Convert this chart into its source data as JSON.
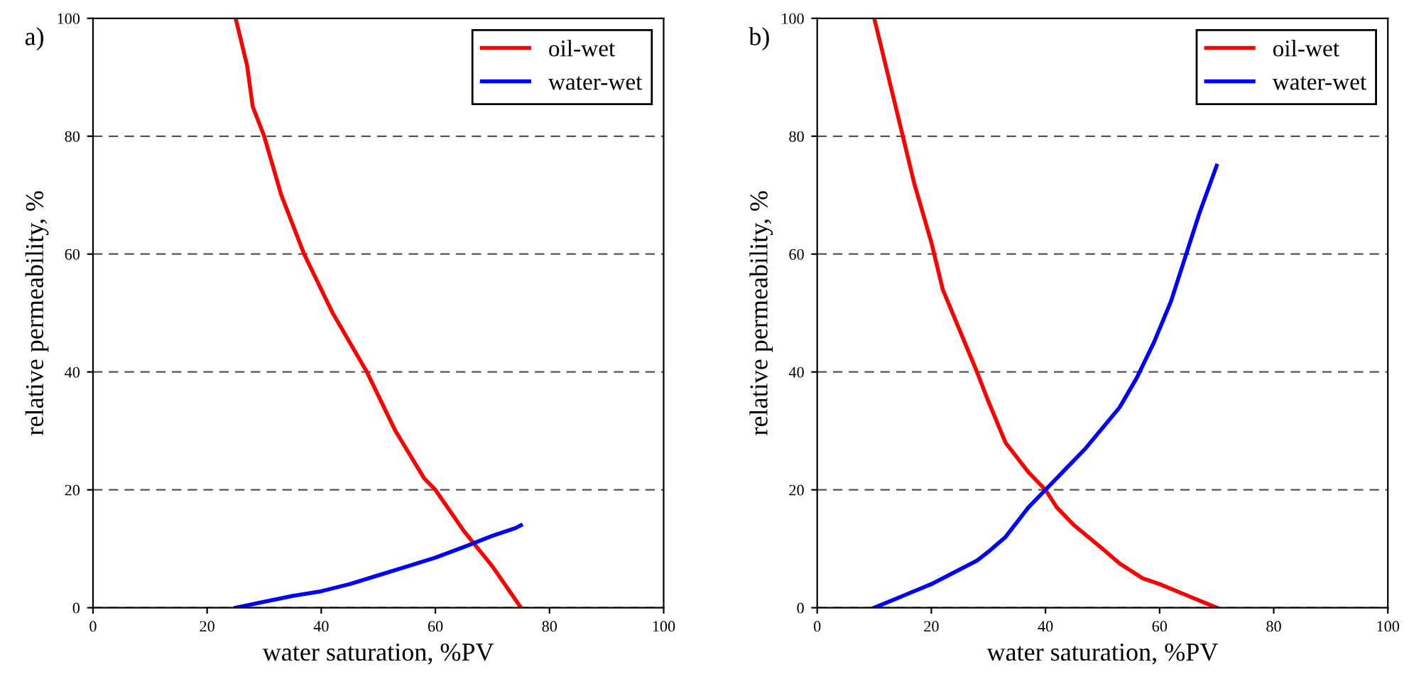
{
  "chart_data": [
    {
      "type": "line",
      "title": "a)",
      "xlabel": "water saturation, %PV",
      "ylabel": "relative permeability, %",
      "xlim": [
        0,
        100
      ],
      "ylim": [
        0,
        100
      ],
      "xticks": [
        0,
        20,
        40,
        60,
        80,
        100
      ],
      "yticks": [
        0,
        20,
        40,
        60,
        80,
        100
      ],
      "grid": "y",
      "legend": "top right",
      "line_style": "solid",
      "series": [
        {
          "name": "oil-wet",
          "color": "#ff0000",
          "x": [
            25,
            27,
            28,
            30,
            33,
            37,
            42,
            48,
            53,
            58,
            60,
            65,
            70,
            75
          ],
          "values": [
            100,
            92,
            85,
            80,
            70,
            60,
            50,
            40,
            30,
            22,
            20,
            13,
            7,
            0
          ]
        },
        {
          "name": "water-wet",
          "color": "#0000ff",
          "x": [
            25,
            30,
            35,
            40,
            45,
            50,
            55,
            60,
            65,
            70,
            74,
            75
          ],
          "values": [
            0,
            1,
            2,
            2.8,
            4,
            5.5,
            7,
            8.5,
            10.3,
            12.2,
            13.5,
            14
          ]
        }
      ]
    },
    {
      "type": "line",
      "title": "b)",
      "xlabel": "water saturation, %PV",
      "ylabel": "relative permeability, %",
      "xlim": [
        0,
        100
      ],
      "ylim": [
        0,
        100
      ],
      "xticks": [
        0,
        20,
        40,
        60,
        80,
        100
      ],
      "yticks": [
        0,
        20,
        40,
        60,
        80,
        100
      ],
      "grid": "y",
      "legend": "top right",
      "line_style": "solid",
      "series": [
        {
          "name": "oil-wet",
          "color": "#ff0000",
          "x": [
            10,
            13,
            15,
            17,
            20,
            22,
            25,
            28,
            30,
            33,
            37,
            40,
            42,
            45,
            50,
            53,
            57,
            60,
            65,
            70
          ],
          "values": [
            100,
            88,
            80,
            72,
            62,
            54,
            47,
            40,
            35,
            28,
            23,
            20,
            17,
            14,
            10,
            7.5,
            5,
            4,
            2,
            0
          ]
        },
        {
          "name": "water-wet",
          "color": "#0000ff",
          "x": [
            10,
            15,
            20,
            25,
            28,
            30,
            33,
            37,
            40,
            43,
            47,
            50,
            53,
            56,
            59,
            62,
            65,
            67,
            70
          ],
          "values": [
            0,
            2,
            4,
            6.5,
            8,
            9.5,
            12,
            17,
            20,
            23,
            27,
            30.5,
            34,
            39,
            45,
            52,
            61,
            67,
            75
          ]
        }
      ]
    }
  ]
}
